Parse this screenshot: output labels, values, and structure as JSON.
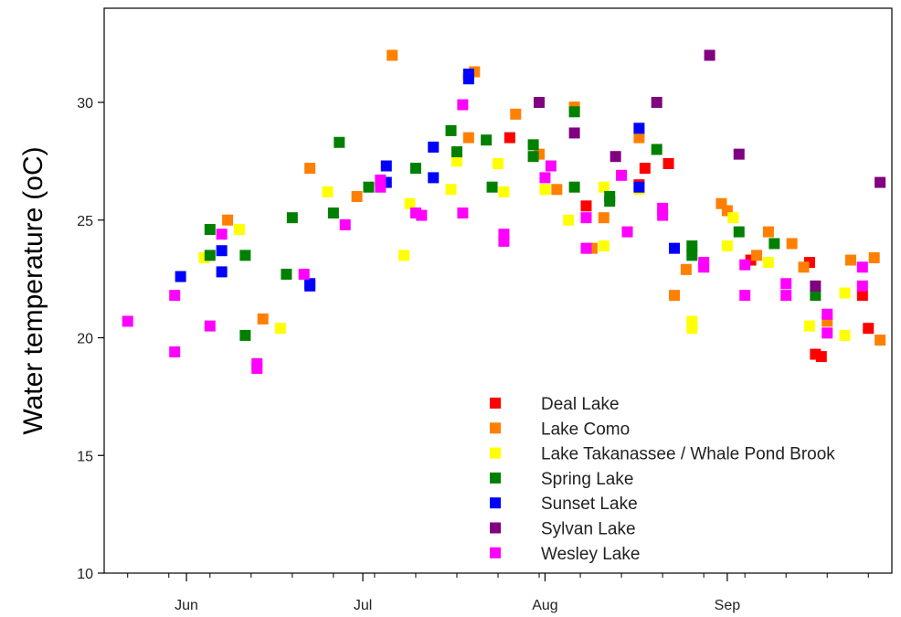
{
  "chart_data": {
    "type": "scatter",
    "title": "",
    "xlabel": "",
    "ylabel": "Water temperature",
    "ylabel_unit": "(oC)",
    "ylim": [
      10,
      34
    ],
    "yticks": [
      10,
      15,
      20,
      25,
      30
    ],
    "xlim": [
      "2019-05-18",
      "2019-09-29"
    ],
    "xticks": [
      {
        "date": "2019-06-01",
        "label": "Jun"
      },
      {
        "date": "2019-07-01",
        "label": "Jul"
      },
      {
        "date": "2019-08-01",
        "label": "Aug"
      },
      {
        "date": "2019-09-01",
        "label": "Sep"
      }
    ],
    "x_minor_ticks": [
      "2019-05-22",
      "2019-05-29",
      "2019-06-05",
      "2019-06-12",
      "2019-06-19",
      "2019-06-26",
      "2019-07-03",
      "2019-07-10",
      "2019-07-17",
      "2019-07-24",
      "2019-07-31",
      "2019-08-07",
      "2019-08-14",
      "2019-08-21",
      "2019-08-28",
      "2019-09-04",
      "2019-09-11",
      "2019-09-18",
      "2019-09-25"
    ],
    "grid": false,
    "legend_position": "bottom-center",
    "series": [
      {
        "name": "Deal Lake",
        "color": "#ff0000",
        "points": [
          [
            "2019-07-26",
            28.5
          ],
          [
            "2019-08-08",
            25.6
          ],
          [
            "2019-08-17",
            26.5
          ],
          [
            "2019-08-18",
            27.2
          ],
          [
            "2019-08-22",
            27.4
          ],
          [
            "2019-09-05",
            23.3
          ],
          [
            "2019-09-15",
            23.2
          ],
          [
            "2019-09-16",
            19.3
          ],
          [
            "2019-09-17",
            19.2
          ],
          [
            "2019-09-24",
            21.8
          ],
          [
            "2019-09-25",
            20.4
          ]
        ]
      },
      {
        "name": "Lake Como",
        "color": "#ff8000",
        "points": [
          [
            "2019-06-08",
            25.0
          ],
          [
            "2019-06-14",
            20.8
          ],
          [
            "2019-06-22",
            27.2
          ],
          [
            "2019-06-30",
            26.0
          ],
          [
            "2019-07-06",
            32.0
          ],
          [
            "2019-07-19",
            28.5
          ],
          [
            "2019-07-20",
            31.3
          ],
          [
            "2019-07-27",
            29.5
          ],
          [
            "2019-07-31",
            27.8
          ],
          [
            "2019-08-03",
            26.3
          ],
          [
            "2019-08-06",
            29.8
          ],
          [
            "2019-08-09",
            23.8
          ],
          [
            "2019-08-11",
            25.1
          ],
          [
            "2019-08-17",
            28.5
          ],
          [
            "2019-08-23",
            21.8
          ],
          [
            "2019-08-25",
            22.9
          ],
          [
            "2019-08-31",
            25.7
          ],
          [
            "2019-09-01",
            25.4
          ],
          [
            "2019-09-06",
            23.5
          ],
          [
            "2019-09-08",
            24.5
          ],
          [
            "2019-09-12",
            24.0
          ],
          [
            "2019-09-14",
            23.0
          ],
          [
            "2019-09-18",
            20.7
          ],
          [
            "2019-09-22",
            23.3
          ],
          [
            "2019-09-26",
            23.4
          ],
          [
            "2019-09-27",
            19.9
          ]
        ]
      },
      {
        "name": "Lake Takanassee / Whale Pond Brook",
        "color": "#ffff00",
        "points": [
          [
            "2019-06-04",
            23.4
          ],
          [
            "2019-06-10",
            24.6
          ],
          [
            "2019-06-17",
            20.4
          ],
          [
            "2019-06-25",
            26.2
          ],
          [
            "2019-07-09",
            25.7
          ],
          [
            "2019-07-08",
            23.5
          ],
          [
            "2019-07-16",
            26.3
          ],
          [
            "2019-07-17",
            27.5
          ],
          [
            "2019-07-24",
            27.4
          ],
          [
            "2019-07-25",
            26.2
          ],
          [
            "2019-08-01",
            26.3
          ],
          [
            "2019-08-05",
            25.0
          ],
          [
            "2019-08-11",
            26.4
          ],
          [
            "2019-08-11",
            23.9
          ],
          [
            "2019-08-17",
            26.3
          ],
          [
            "2019-08-26",
            20.7
          ],
          [
            "2019-08-26",
            20.4
          ],
          [
            "2019-09-02",
            25.1
          ],
          [
            "2019-09-01",
            23.9
          ],
          [
            "2019-09-08",
            23.2
          ],
          [
            "2019-09-15",
            20.5
          ],
          [
            "2019-09-21",
            21.9
          ],
          [
            "2019-09-21",
            20.1
          ]
        ]
      },
      {
        "name": "Spring Lake",
        "color": "#008000",
        "points": [
          [
            "2019-06-05",
            24.6
          ],
          [
            "2019-06-05",
            23.5
          ],
          [
            "2019-06-11",
            23.5
          ],
          [
            "2019-06-11",
            20.1
          ],
          [
            "2019-06-18",
            22.7
          ],
          [
            "2019-06-19",
            25.1
          ],
          [
            "2019-06-26",
            25.3
          ],
          [
            "2019-06-27",
            28.3
          ],
          [
            "2019-07-02",
            26.4
          ],
          [
            "2019-07-10",
            27.2
          ],
          [
            "2019-07-16",
            28.8
          ],
          [
            "2019-07-17",
            27.9
          ],
          [
            "2019-07-22",
            28.4
          ],
          [
            "2019-07-23",
            26.4
          ],
          [
            "2019-07-30",
            28.2
          ],
          [
            "2019-07-30",
            27.7
          ],
          [
            "2019-08-06",
            29.6
          ],
          [
            "2019-08-06",
            26.4
          ],
          [
            "2019-08-12",
            26.0
          ],
          [
            "2019-08-12",
            25.8
          ],
          [
            "2019-08-20",
            28.0
          ],
          [
            "2019-08-26",
            23.9
          ],
          [
            "2019-08-26",
            23.5
          ],
          [
            "2019-09-03",
            24.5
          ],
          [
            "2019-09-09",
            24.0
          ],
          [
            "2019-09-16",
            21.8
          ]
        ]
      },
      {
        "name": "Sunset Lake",
        "color": "#0000ff",
        "points": [
          [
            "2019-05-31",
            22.6
          ],
          [
            "2019-06-07",
            23.7
          ],
          [
            "2019-06-07",
            22.8
          ],
          [
            "2019-06-22",
            22.3
          ],
          [
            "2019-06-22",
            22.2
          ],
          [
            "2019-07-05",
            27.3
          ],
          [
            "2019-07-05",
            26.6
          ],
          [
            "2019-07-13",
            28.1
          ],
          [
            "2019-07-13",
            26.8
          ],
          [
            "2019-07-19",
            31.2
          ],
          [
            "2019-07-19",
            31.0
          ],
          [
            "2019-08-17",
            28.9
          ],
          [
            "2019-08-17",
            26.4
          ],
          [
            "2019-08-23",
            23.8
          ]
        ]
      },
      {
        "name": "Sylvan Lake",
        "color": "#800080",
        "points": [
          [
            "2019-07-31",
            30.0
          ],
          [
            "2019-08-06",
            28.7
          ],
          [
            "2019-08-13",
            27.7
          ],
          [
            "2019-08-20",
            30.0
          ],
          [
            "2019-08-29",
            32.0
          ],
          [
            "2019-09-03",
            27.8
          ],
          [
            "2019-09-16",
            22.2
          ],
          [
            "2019-09-27",
            26.6
          ]
        ]
      },
      {
        "name": "Wesley Lake",
        "color": "#ff00ff",
        "points": [
          [
            "2019-05-22",
            20.7
          ],
          [
            "2019-05-30",
            19.4
          ],
          [
            "2019-05-30",
            21.8
          ],
          [
            "2019-06-05",
            20.5
          ],
          [
            "2019-06-07",
            24.4
          ],
          [
            "2019-06-13",
            18.9
          ],
          [
            "2019-06-13",
            18.7
          ],
          [
            "2019-06-21",
            22.7
          ],
          [
            "2019-06-28",
            24.8
          ],
          [
            "2019-07-04",
            26.7
          ],
          [
            "2019-07-04",
            26.4
          ],
          [
            "2019-07-10",
            25.3
          ],
          [
            "2019-07-11",
            25.2
          ],
          [
            "2019-07-18",
            29.9
          ],
          [
            "2019-07-18",
            25.3
          ],
          [
            "2019-07-25",
            24.4
          ],
          [
            "2019-07-25",
            24.1
          ],
          [
            "2019-08-01",
            26.8
          ],
          [
            "2019-08-02",
            27.3
          ],
          [
            "2019-08-08",
            25.1
          ],
          [
            "2019-08-08",
            23.8
          ],
          [
            "2019-08-14",
            26.9
          ],
          [
            "2019-08-15",
            24.5
          ],
          [
            "2019-08-21",
            25.5
          ],
          [
            "2019-08-21",
            25.2
          ],
          [
            "2019-08-28",
            23.2
          ],
          [
            "2019-08-28",
            23.0
          ],
          [
            "2019-09-04",
            21.8
          ],
          [
            "2019-09-04",
            23.1
          ],
          [
            "2019-09-11",
            22.3
          ],
          [
            "2019-09-11",
            21.8
          ],
          [
            "2019-09-18",
            21.0
          ],
          [
            "2019-09-18",
            20.2
          ],
          [
            "2019-09-24",
            23.0
          ],
          [
            "2019-09-24",
            22.2
          ]
        ]
      }
    ]
  }
}
